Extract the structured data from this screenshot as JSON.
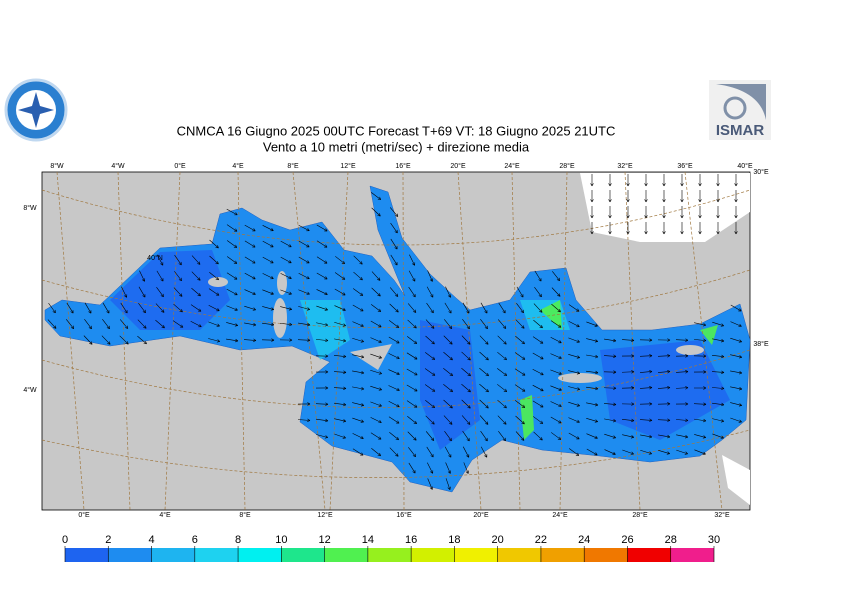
{
  "header": {
    "title": "CNMCA 16   Giugno  2025 00UTC Forecast T+69 VT: 18   Giugno  2025 21UTC",
    "subtitle": "Vento a 10 metri (metri/sec) + direzione media",
    "logo_text": "ISMAR"
  },
  "map": {
    "top_labels": [
      "8°W",
      "4°W",
      "0°E",
      "4°E",
      "8°E",
      "12°E",
      "16°E",
      "20°E",
      "24°E",
      "28°E",
      "32°E",
      "36°E",
      "40°E"
    ],
    "bottom_labels": [
      "0°E",
      "4°E",
      "8°E",
      "12°E",
      "16°E",
      "20°E",
      "24°E",
      "28°E",
      "32°E"
    ],
    "left_labels": [
      "8°W",
      "4°W",
      "40°N"
    ],
    "right_labels": [
      "30°E",
      "38°E"
    ]
  },
  "colorbar": {
    "ticks": [
      0,
      2,
      4,
      6,
      8,
      10,
      12,
      14,
      16,
      18,
      20,
      22,
      24,
      26,
      28,
      30
    ],
    "colors": [
      "#1e64f0",
      "#1e8cf0",
      "#1eb4f0",
      "#1ed2f0",
      "#00f0f0",
      "#1ee68c",
      "#50f050",
      "#96f01e",
      "#d2f000",
      "#f0f000",
      "#f0c800",
      "#f0a000",
      "#f07800",
      "#f00000",
      "#f01e8c"
    ]
  }
}
